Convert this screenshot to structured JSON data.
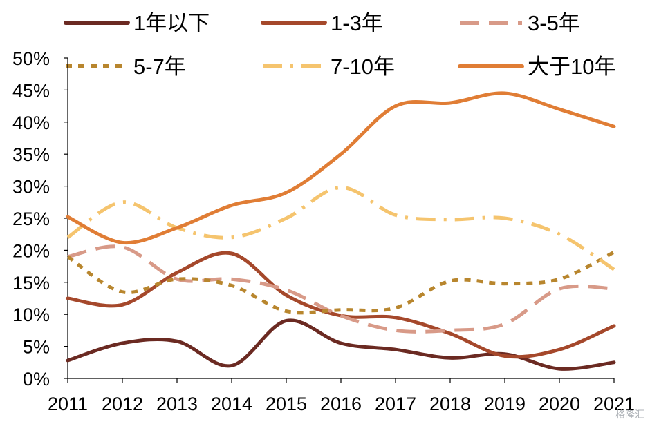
{
  "chart_data": {
    "type": "line",
    "title": "",
    "xlabel": "",
    "ylabel": "",
    "categories": [
      "2011",
      "2012",
      "2013",
      "2014",
      "2015",
      "2016",
      "2017",
      "2018",
      "2019",
      "2020",
      "2021"
    ],
    "ylim": [
      0,
      50
    ],
    "yticks": [
      "0%",
      "5%",
      "10%",
      "15%",
      "20%",
      "25%",
      "30%",
      "35%",
      "40%",
      "45%",
      "50%"
    ],
    "grid": false,
    "legend_position": "top",
    "series": [
      {
        "name": "1年以下",
        "color": "#6b2a22",
        "dash": "solid",
        "values": [
          2.8,
          5.5,
          5.8,
          2.0,
          9.0,
          5.5,
          4.5,
          3.2,
          3.8,
          1.5,
          2.5
        ]
      },
      {
        "name": "1-3年",
        "color": "#a5482b",
        "dash": "solid",
        "values": [
          12.5,
          11.5,
          16.5,
          19.5,
          13.0,
          9.8,
          9.5,
          7.0,
          3.5,
          4.5,
          8.2
        ]
      },
      {
        "name": "3-5年",
        "color": "#d89a88",
        "dash": "dash",
        "values": [
          19.0,
          20.5,
          15.5,
          15.5,
          13.8,
          9.8,
          7.5,
          7.5,
          8.5,
          14.0,
          14.0
        ]
      },
      {
        "name": "5-7年",
        "color": "#b8862e",
        "dash": "dot",
        "values": [
          19.0,
          13.5,
          15.5,
          14.5,
          10.5,
          10.7,
          11.0,
          15.2,
          14.8,
          15.5,
          19.7
        ]
      },
      {
        "name": "7-10年",
        "color": "#f5c46e",
        "dash": "dashdot",
        "values": [
          22.0,
          27.5,
          23.5,
          22.0,
          25.0,
          29.8,
          25.5,
          24.8,
          25.0,
          22.5,
          17.0
        ]
      },
      {
        "name": "大于10年",
        "color": "#e07d35",
        "dash": "solid",
        "values": [
          25.2,
          21.2,
          23.5,
          27.0,
          29.0,
          35.0,
          42.5,
          43.0,
          44.5,
          42.0,
          39.3
        ]
      }
    ]
  },
  "watermark": "格隆汇"
}
